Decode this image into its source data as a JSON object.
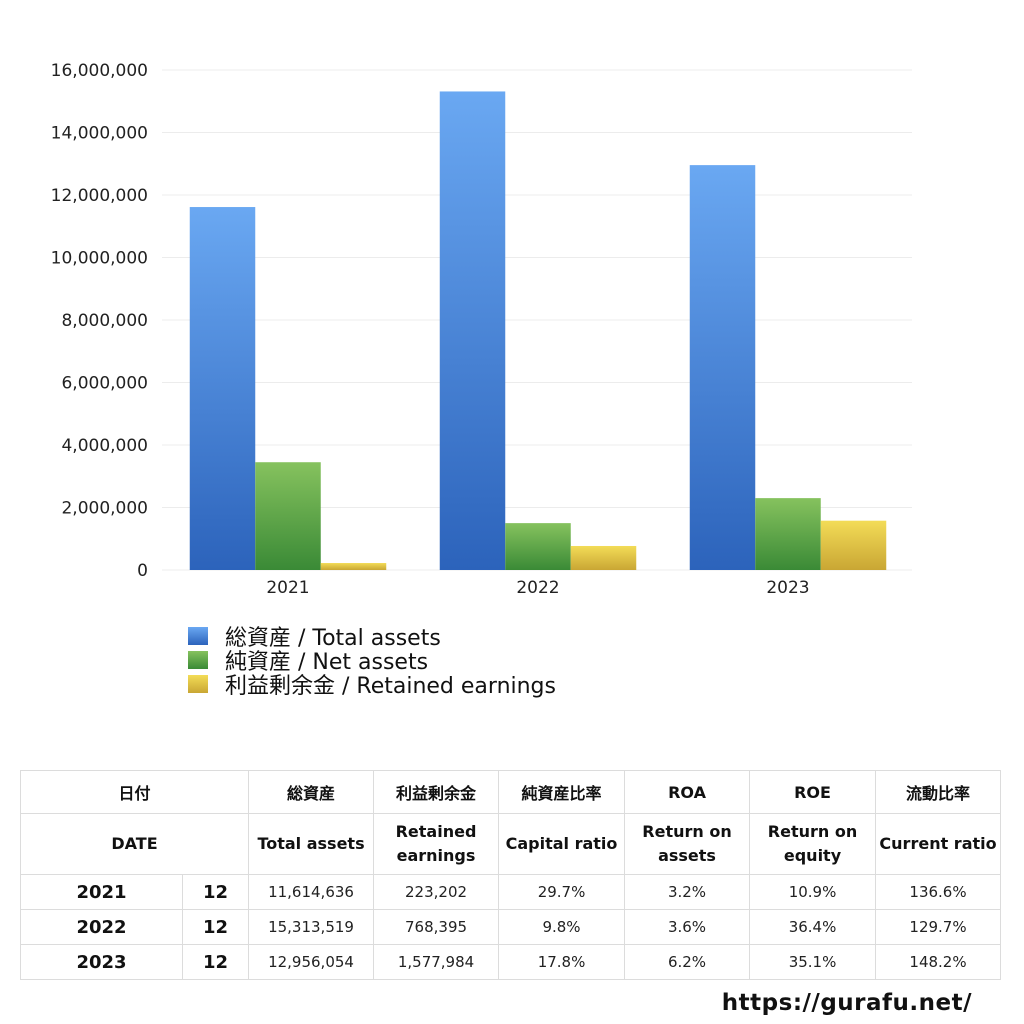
{
  "chart_data": {
    "type": "bar",
    "categories": [
      "2021",
      "2022",
      "2023"
    ],
    "series": [
      {
        "name": "総資産 / Total assets",
        "values": [
          11614636,
          15313519,
          12956054
        ]
      },
      {
        "name": "純資産 / Net assets",
        "values": [
          3449000,
          1500000,
          2300000
        ]
      },
      {
        "name": "利益剰余金 / Retained earnings",
        "values": [
          223202,
          768395,
          1577984
        ]
      }
    ],
    "ylim": [
      0,
      16000000
    ],
    "yticks": [
      0,
      2000000,
      4000000,
      6000000,
      8000000,
      10000000,
      12000000,
      14000000,
      16000000
    ],
    "ytick_labels": [
      "0",
      "2,000,000",
      "4,000,000",
      "6,000,000",
      "8,000,000",
      "10,000,000",
      "12,000,000",
      "14,000,000",
      "16,000,000"
    ],
    "grid": true,
    "legend_position": "bottom-left",
    "colors": {
      "total_assets": [
        "#6aa8f2",
        "#2c63bb"
      ],
      "net_assets": [
        "#86c25e",
        "#3a8a36"
      ],
      "retained_earnings": [
        "#f3dc57",
        "#c9a634"
      ]
    }
  },
  "table": {
    "header_jp": [
      "日付",
      "総資産",
      "利益剰余金",
      "純資産比率",
      "ROA",
      "ROE",
      "流動比率"
    ],
    "header_en": {
      "date": "DATE",
      "total_assets": "Total assets",
      "retained_1": "Retained",
      "retained_2": "earnings",
      "capital_ratio": "Capital ratio",
      "roa_1": "Return on",
      "roa_2": "assets",
      "roe_1": "Return on",
      "roe_2": "equity",
      "current_ratio": "Current ratio"
    },
    "rows": [
      {
        "year": "2021",
        "month": "12",
        "total_assets": "11,614,636",
        "retained": "223,202",
        "capital_ratio": "29.7%",
        "roa": "3.2%",
        "roe": "10.9%",
        "current_ratio": "136.6%"
      },
      {
        "year": "2022",
        "month": "12",
        "total_assets": "15,313,519",
        "retained": "768,395",
        "capital_ratio": "9.8%",
        "roa": "3.6%",
        "roe": "36.4%",
        "current_ratio": "129.7%"
      },
      {
        "year": "2023",
        "month": "12",
        "total_assets": "12,956,054",
        "retained": "1,577,984",
        "capital_ratio": "17.8%",
        "roa": "6.2%",
        "roe": "35.1%",
        "current_ratio": "148.2%"
      }
    ]
  },
  "site_url": "https://gurafu.net/"
}
